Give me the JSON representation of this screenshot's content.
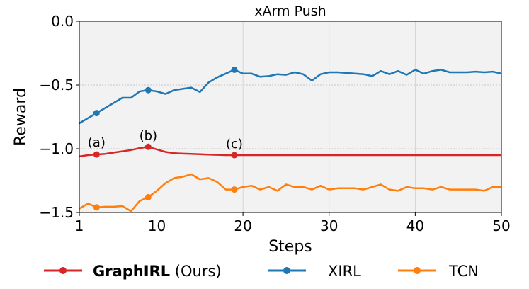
{
  "chart_data": {
    "type": "line",
    "title": "xArm Push",
    "xlabel": "Steps",
    "ylabel": "Reward",
    "xlim": [
      1,
      50
    ],
    "ylim": [
      -1.5,
      0.0
    ],
    "xticks": [
      1,
      10,
      20,
      30,
      40,
      50
    ],
    "yticks": [
      0.0,
      -0.5,
      -1.0,
      -1.5
    ],
    "xtick_labels": [
      "1",
      "10",
      "20",
      "30",
      "40",
      "50"
    ],
    "ytick_labels": [
      "0.0",
      "−0.5",
      "−1.0",
      "−1.5"
    ],
    "grid": true,
    "legend_placement": "bottom",
    "annotations": [
      {
        "text": "(a)",
        "x": 3,
        "y": -1.04
      },
      {
        "text": "(b)",
        "x": 9,
        "y": -0.985
      },
      {
        "text": "(c)",
        "x": 19,
        "y": -1.05
      }
    ],
    "series": [
      {
        "name": "GraphIRL",
        "legend_suffix": " (Ours)",
        "color": "#d62728",
        "x": [
          1,
          2,
          3,
          4,
          5,
          6,
          7,
          8,
          9,
          10,
          11,
          12,
          13,
          14,
          15,
          16,
          17,
          18,
          19,
          20,
          21,
          22,
          23,
          24,
          25,
          26,
          27,
          28,
          29,
          30,
          31,
          32,
          33,
          34,
          35,
          36,
          37,
          38,
          39,
          40,
          41,
          42,
          43,
          44,
          45,
          46,
          47,
          48,
          49,
          50
        ],
        "values": [
          -1.06,
          -1.05,
          -1.045,
          -1.04,
          -1.03,
          -1.02,
          -1.01,
          -0.995,
          -0.985,
          -1.005,
          -1.025,
          -1.035,
          -1.038,
          -1.04,
          -1.043,
          -1.046,
          -1.048,
          -1.05,
          -1.05,
          -1.05,
          -1.05,
          -1.05,
          -1.05,
          -1.05,
          -1.05,
          -1.05,
          -1.05,
          -1.05,
          -1.05,
          -1.05,
          -1.05,
          -1.05,
          -1.05,
          -1.05,
          -1.05,
          -1.05,
          -1.05,
          -1.05,
          -1.05,
          -1.05,
          -1.05,
          -1.05,
          -1.05,
          -1.05,
          -1.05,
          -1.05,
          -1.05,
          -1.05,
          -1.05,
          -1.05
        ],
        "markers_at": [
          3,
          9,
          19
        ]
      },
      {
        "name": "XIRL",
        "color": "#1f77b4",
        "x": [
          1,
          2,
          3,
          4,
          5,
          6,
          7,
          8,
          9,
          10,
          11,
          12,
          13,
          14,
          15,
          16,
          17,
          18,
          19,
          20,
          21,
          22,
          23,
          24,
          25,
          26,
          27,
          28,
          29,
          30,
          31,
          32,
          33,
          34,
          35,
          36,
          37,
          38,
          39,
          40,
          41,
          42,
          43,
          44,
          45,
          46,
          47,
          48,
          49,
          50
        ],
        "values": [
          -0.8,
          -0.76,
          -0.72,
          -0.68,
          -0.64,
          -0.6,
          -0.6,
          -0.55,
          -0.54,
          -0.55,
          -0.57,
          -0.54,
          -0.53,
          -0.52,
          -0.555,
          -0.48,
          -0.44,
          -0.41,
          -0.38,
          -0.41,
          -0.41,
          -0.435,
          -0.43,
          -0.415,
          -0.42,
          -0.4,
          -0.415,
          -0.465,
          -0.415,
          -0.4,
          -0.4,
          -0.405,
          -0.41,
          -0.415,
          -0.43,
          -0.39,
          -0.415,
          -0.39,
          -0.42,
          -0.38,
          -0.41,
          -0.39,
          -0.38,
          -0.4,
          -0.4,
          -0.4,
          -0.395,
          -0.4,
          -0.395,
          -0.41
        ],
        "markers_at": [
          3,
          9,
          19
        ]
      },
      {
        "name": "TCN",
        "color": "#ff7f0e",
        "x": [
          1,
          2,
          3,
          4,
          5,
          6,
          7,
          8,
          9,
          10,
          11,
          12,
          13,
          14,
          15,
          16,
          17,
          18,
          19,
          20,
          21,
          22,
          23,
          24,
          25,
          26,
          27,
          28,
          29,
          30,
          31,
          32,
          33,
          34,
          35,
          36,
          37,
          38,
          39,
          40,
          41,
          42,
          43,
          44,
          45,
          46,
          47,
          48,
          49,
          50
        ],
        "values": [
          -1.47,
          -1.43,
          -1.46,
          -1.455,
          -1.455,
          -1.45,
          -1.49,
          -1.41,
          -1.38,
          -1.33,
          -1.27,
          -1.23,
          -1.22,
          -1.2,
          -1.24,
          -1.23,
          -1.26,
          -1.32,
          -1.32,
          -1.3,
          -1.29,
          -1.32,
          -1.3,
          -1.33,
          -1.28,
          -1.3,
          -1.3,
          -1.32,
          -1.29,
          -1.32,
          -1.31,
          -1.31,
          -1.31,
          -1.32,
          -1.3,
          -1.28,
          -1.32,
          -1.33,
          -1.3,
          -1.31,
          -1.31,
          -1.32,
          -1.3,
          -1.32,
          -1.32,
          -1.32,
          -1.32,
          -1.33,
          -1.3,
          -1.3
        ],
        "markers_at": [
          3,
          9,
          19
        ]
      }
    ]
  }
}
